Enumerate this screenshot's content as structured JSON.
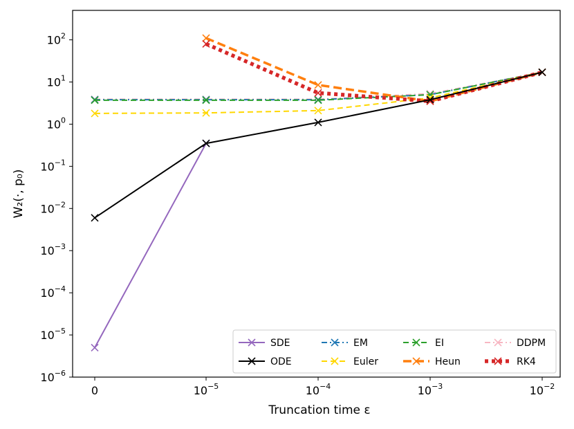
{
  "chart_data": {
    "type": "line",
    "xlabel": "Truncation time ε",
    "ylabel": "W₂(·, p₀)",
    "x_tick_labels": [
      {
        "base": "0",
        "exp": ""
      },
      {
        "base": "10",
        "exp": "−5"
      },
      {
        "base": "10",
        "exp": "−4"
      },
      {
        "base": "10",
        "exp": "−3"
      },
      {
        "base": "10",
        "exp": "−2"
      }
    ],
    "y_scale": "log",
    "ylim": [
      1e-06,
      500
    ],
    "y_tick_labels": [
      {
        "base": "10",
        "exp": "2",
        "value": 100
      },
      {
        "base": "10",
        "exp": "1",
        "value": 10
      },
      {
        "base": "10",
        "exp": "0",
        "value": 1
      },
      {
        "base": "10",
        "exp": "−1",
        "value": 0.1
      },
      {
        "base": "10",
        "exp": "−2",
        "value": 0.01
      },
      {
        "base": "10",
        "exp": "−3",
        "value": 0.001
      },
      {
        "base": "10",
        "exp": "−4",
        "value": 0.0001
      },
      {
        "base": "10",
        "exp": "−5",
        "value": 1e-05
      },
      {
        "base": "10",
        "exp": "−6",
        "value": 1e-06
      }
    ],
    "legend_position": "lower-right",
    "series": [
      {
        "name": "SDE",
        "color": "#9467bd",
        "style": "solid",
        "values": [
          5e-06,
          0.35,
          null,
          null,
          null
        ]
      },
      {
        "name": "ODE",
        "color": "#000000",
        "style": "solid",
        "values": [
          0.006,
          0.35,
          1.1,
          3.8,
          17
        ]
      },
      {
        "name": "EM",
        "color": "#1f77b4",
        "style": "dashdot",
        "values": [
          3.8,
          3.8,
          3.8,
          5.0,
          17
        ]
      },
      {
        "name": "Euler",
        "color": "#ffd700",
        "style": "dashed",
        "values": [
          1.8,
          1.85,
          2.1,
          4.2,
          17
        ]
      },
      {
        "name": "EI",
        "color": "#2ca02c",
        "style": "dashed",
        "values": [
          3.7,
          3.7,
          3.7,
          5.0,
          17
        ]
      },
      {
        "name": "Heun",
        "color": "#ff7f0e",
        "style": "thickdashed",
        "values": [
          null,
          110,
          8.5,
          3.5,
          17
        ]
      },
      {
        "name": "DDPM",
        "color": "#f7b6c2",
        "style": "dashdot",
        "values": [
          3.9,
          3.9,
          3.9,
          5.3,
          17
        ]
      },
      {
        "name": "RK4",
        "color": "#d62728",
        "style": "dotted",
        "values": [
          null,
          80,
          5.5,
          3.5,
          17
        ]
      }
    ]
  }
}
